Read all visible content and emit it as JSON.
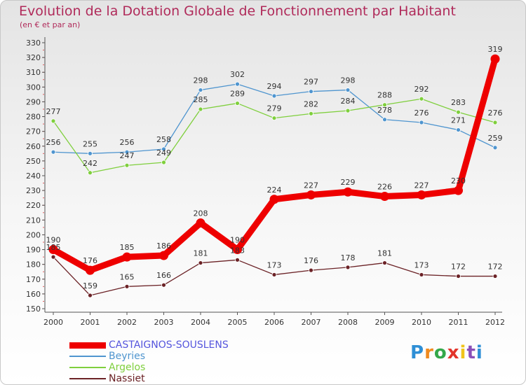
{
  "title": "Evolution de la Dotation Globale de Fonctionnement par Habitant",
  "subtitle": "(en € et par an)",
  "logo": {
    "text": "Proxiti",
    "letter_colors": [
      "#2e8fd6",
      "#f08a1e",
      "#34a84a",
      "#e2342b",
      "#f0c419",
      "#8a4fb8",
      "#2e8fd6"
    ]
  },
  "chart_data": {
    "type": "line",
    "title": "Evolution de la Dotation Globale de Fonctionnement par Habitant",
    "subtitle": "(en € et par an)",
    "x": [
      "2000",
      "2001",
      "2002",
      "2003",
      "2004",
      "2005",
      "2006",
      "2007",
      "2008",
      "2009",
      "2010",
      "2011",
      "2012"
    ],
    "ylim": [
      150,
      330
    ],
    "yticks": [
      150,
      160,
      170,
      180,
      190,
      200,
      210,
      220,
      230,
      240,
      250,
      260,
      270,
      280,
      290,
      300,
      310,
      320,
      330
    ],
    "grid": false,
    "legend": "bottom-left",
    "series": [
      {
        "name": "CASTAIGNOS-SOUSLENS",
        "color": "#ee0000",
        "legend_color": "#5555dd",
        "emphasis": true,
        "values": [
          190,
          176,
          185,
          186,
          208,
          190,
          224,
          227,
          229,
          226,
          227,
          230,
          319
        ]
      },
      {
        "name": "Beyries",
        "color": "#4f95cf",
        "legend_color": "#4f95cf",
        "emphasis": false,
        "values": [
          256,
          255,
          256,
          258,
          298,
          302,
          294,
          297,
          298,
          278,
          276,
          271,
          259
        ]
      },
      {
        "name": "Argelos",
        "color": "#7fcf3d",
        "legend_color": "#7fcf3d",
        "emphasis": false,
        "values": [
          277,
          242,
          247,
          249,
          285,
          289,
          279,
          282,
          284,
          288,
          292,
          283,
          276
        ]
      },
      {
        "name": "Nassiet",
        "color": "#6b2226",
        "legend_color": "#6b2226",
        "emphasis": false,
        "values": [
          185,
          159,
          165,
          166,
          181,
          183,
          173,
          176,
          178,
          181,
          173,
          172,
          172
        ]
      }
    ]
  }
}
